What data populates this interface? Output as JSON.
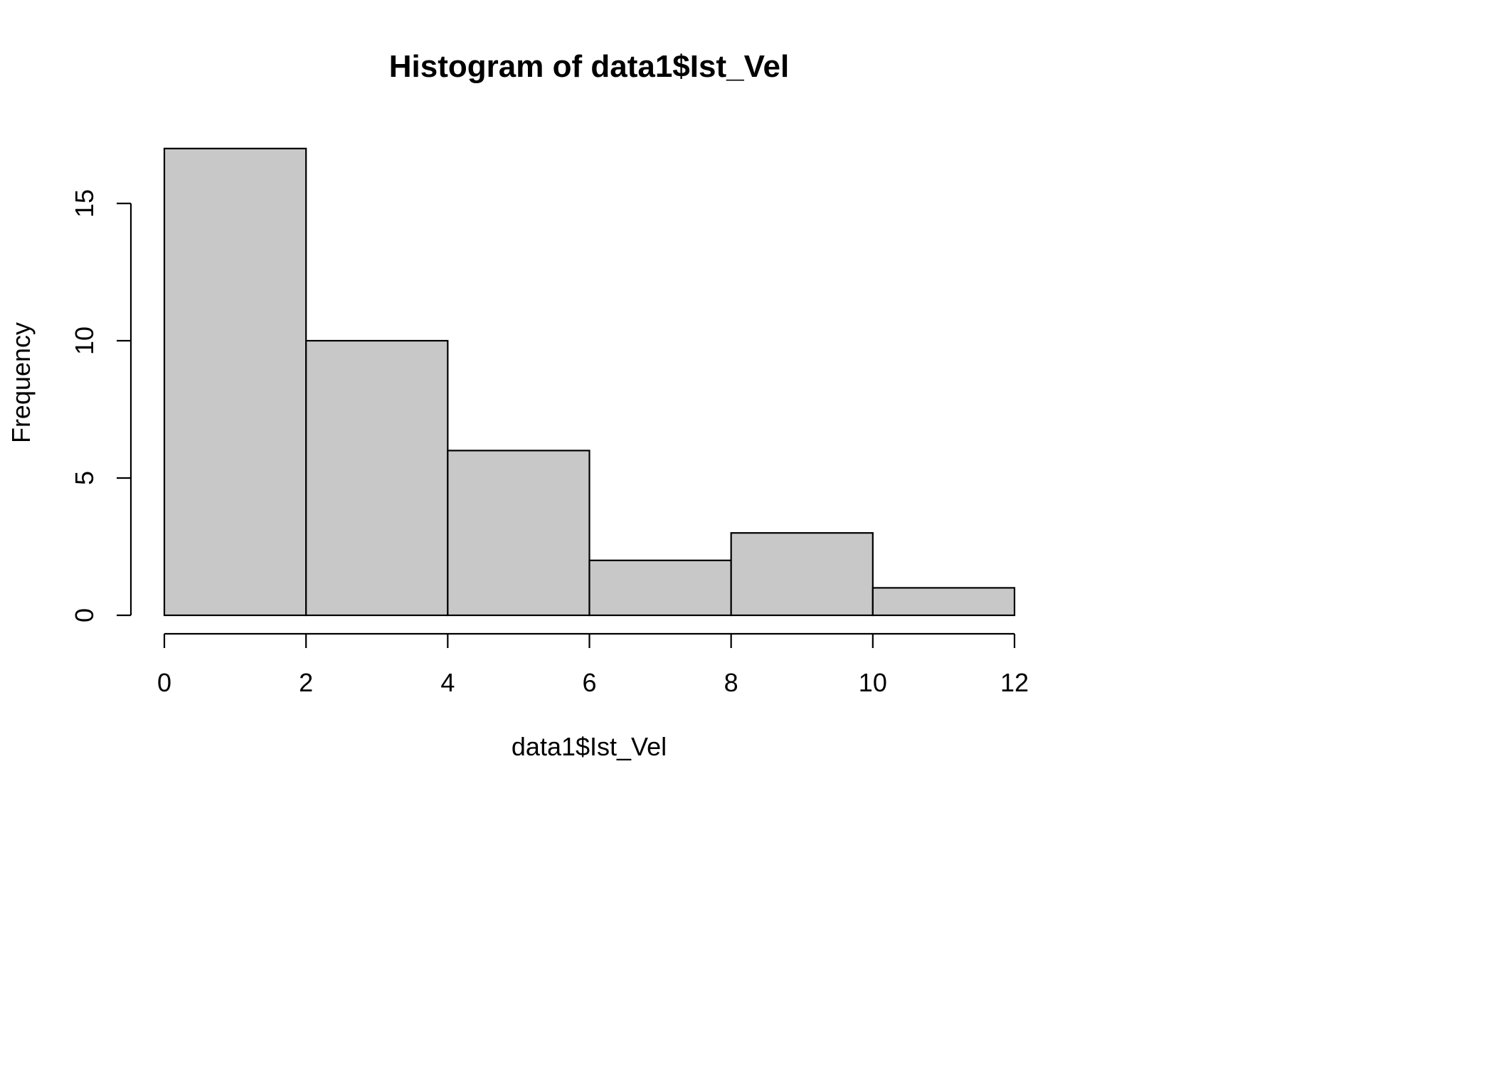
{
  "chart_data": {
    "type": "histogram",
    "title": "Histogram of data1$Ist_Vel",
    "xlabel": "data1$Ist_Vel",
    "ylabel": "Frequency",
    "bins": [
      {
        "from": 0,
        "to": 2,
        "count": 17
      },
      {
        "from": 2,
        "to": 4,
        "count": 10
      },
      {
        "from": 4,
        "to": 6,
        "count": 6
      },
      {
        "from": 6,
        "to": 8,
        "count": 2
      },
      {
        "from": 8,
        "to": 10,
        "count": 3
      },
      {
        "from": 10,
        "to": 12,
        "count": 1
      }
    ],
    "xlim": [
      0,
      12
    ],
    "ylim": [
      0,
      17
    ],
    "x_ticks": [
      0,
      2,
      4,
      6,
      8,
      10,
      12
    ],
    "y_ticks": [
      0,
      5,
      10,
      15
    ],
    "bar_color": "#c8c8c8",
    "grid": false,
    "legend": "none"
  }
}
